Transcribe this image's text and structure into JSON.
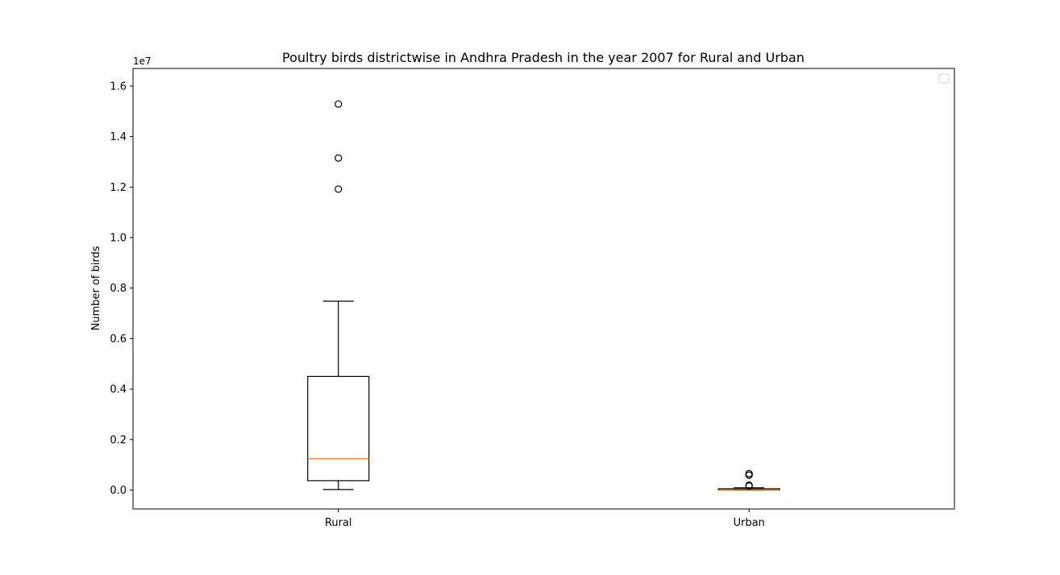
{
  "chart_data": {
    "type": "box",
    "title": "Poultry birds districtwise in Andhra Pradesh in the year 2007 for Rural and Urban",
    "xlabel": "",
    "ylabel": "Number of birds",
    "y_offset_label": "1e7",
    "ylim": [
      -750000,
      16700000
    ],
    "yticks": [
      {
        "value": 0,
        "label": "0.0"
      },
      {
        "value": 2000000,
        "label": "0.2"
      },
      {
        "value": 4000000,
        "label": "0.4"
      },
      {
        "value": 6000000,
        "label": "0.6"
      },
      {
        "value": 8000000,
        "label": "0.8"
      },
      {
        "value": 10000000,
        "label": "1.0"
      },
      {
        "value": 12000000,
        "label": "1.2"
      },
      {
        "value": 14000000,
        "label": "1.4"
      },
      {
        "value": 16000000,
        "label": "1.6"
      }
    ],
    "categories": [
      "Rural",
      "Urban"
    ],
    "boxes": [
      {
        "name": "Rural",
        "whisker_low": 20000,
        "q1": 370000,
        "median": 1240000,
        "q3": 4500000,
        "whisker_high": 7480000,
        "outliers": [
          11920000,
          13150000,
          15290000
        ]
      },
      {
        "name": "Urban",
        "whisker_low": 0,
        "q1": 0,
        "median": 15000,
        "q3": 50000,
        "whisker_high": 90000,
        "outliers": [
          160000,
          190000,
          590000,
          650000
        ]
      }
    ],
    "legend": {
      "position": "top-right",
      "entries": []
    },
    "grid": false,
    "colors": {
      "box": "#000000",
      "median": "#ff7f0e",
      "outlier": "#000000"
    }
  }
}
